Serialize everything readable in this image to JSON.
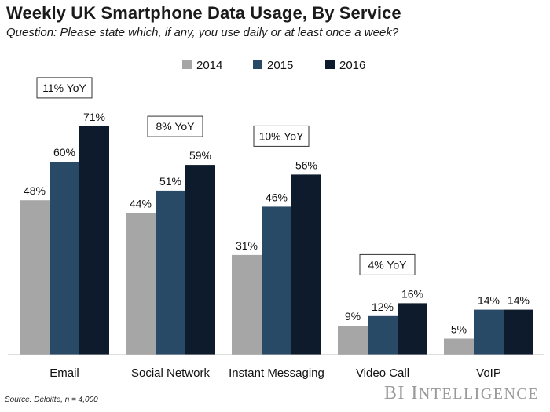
{
  "chart_data": {
    "type": "bar",
    "title": "Weekly UK Smartphone Data Usage, By Service",
    "subtitle": "Question: Please state which, if any, you use daily or at least once a week?",
    "categories": [
      "Email",
      "Social Network",
      "Instant Messaging",
      "Video Call",
      "VoIP"
    ],
    "series": [
      {
        "name": "2014",
        "color": "#a6a6a6",
        "values": [
          48,
          44,
          31,
          9,
          5
        ],
        "labels": [
          "48%",
          "44%",
          "31%",
          "9%",
          "5%"
        ]
      },
      {
        "name": "2015",
        "color": "#284a66",
        "values": [
          60,
          51,
          46,
          12,
          14
        ],
        "labels": [
          "60%",
          "51%",
          "46%",
          "12%",
          "14%"
        ]
      },
      {
        "name": "2016",
        "color": "#0d1b2c",
        "values": [
          71,
          59,
          56,
          16,
          14
        ],
        "labels": [
          "71%",
          "59%",
          "56%",
          "16%",
          "14%"
        ]
      }
    ],
    "annotations": [
      "11% YoY",
      "8% YoY",
      "10% YoY",
      "4% YoY",
      ""
    ],
    "ylim": [
      0,
      100
    ],
    "xlabel": "",
    "ylabel": "",
    "grid": false,
    "legend_position": "top-center"
  },
  "source": "Source: Deloitte, n = 4,000",
  "brand": {
    "initials": "BI",
    "name": "Intelligence"
  }
}
